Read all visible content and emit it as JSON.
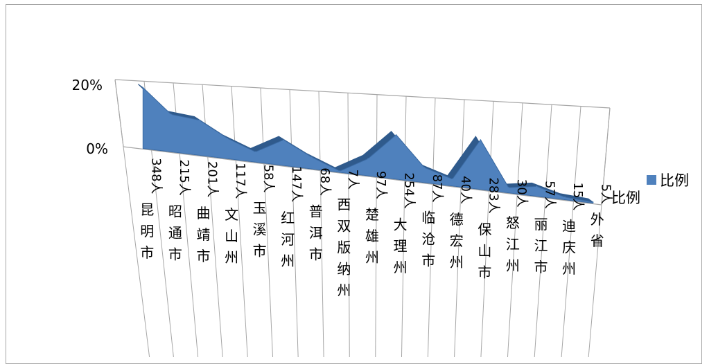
{
  "chart_data": {
    "type": "area",
    "title": "",
    "xlabel": "",
    "ylabel": "",
    "y_ticks": [
      "20%",
      "0%"
    ],
    "ylim": [
      0,
      20
    ],
    "grid": true,
    "legend_position": "right",
    "series_axis_label": "比例",
    "series": [
      {
        "name": "比例",
        "color": "#4f81bd",
        "values": [
          18.5,
          11.4,
          10.7,
          6.2,
          3.1,
          7.8,
          3.6,
          0.4,
          5.2,
          13.5,
          4.6,
          2.1,
          15.1,
          1.6,
          3.0,
          0.8,
          0.3
        ]
      }
    ],
    "categories": [
      {
        "count": "348人",
        "name": "昆明市"
      },
      {
        "count": "215人",
        "name": "昭通市"
      },
      {
        "count": "201人",
        "name": "曲靖市"
      },
      {
        "count": "117人",
        "name": "文山州"
      },
      {
        "count": "58人",
        "name": "玉溪市"
      },
      {
        "count": "147人",
        "name": "红河州"
      },
      {
        "count": "68人",
        "name": "普洱市"
      },
      {
        "count": "7人",
        "name": "西双版纳州"
      },
      {
        "count": "97人",
        "name": "楚雄州"
      },
      {
        "count": "254人",
        "name": "大理州"
      },
      {
        "count": "87人",
        "name": "临沧市"
      },
      {
        "count": "40人",
        "name": "德宏州"
      },
      {
        "count": "283人",
        "name": "保山市"
      },
      {
        "count": "30人",
        "name": "怒江州"
      },
      {
        "count": "57人",
        "name": "丽江市"
      },
      {
        "count": "15人",
        "name": "迪庆州"
      },
      {
        "count": "5人",
        "name": "外省"
      }
    ]
  }
}
